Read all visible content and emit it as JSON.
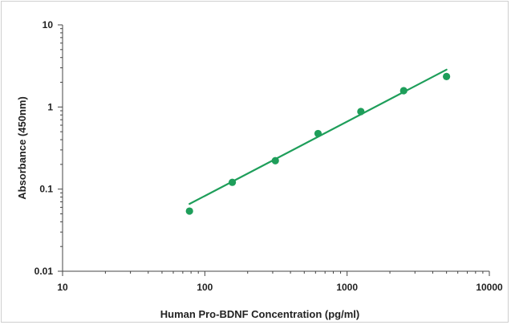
{
  "chart_data": {
    "type": "scatter",
    "title": "",
    "xlabel": "Human Pro-BDNF  Concentration (pg/ml)",
    "ylabel": "Absorbance (450nm)",
    "x_scale": "log",
    "y_scale": "log",
    "xlim": [
      10,
      10000
    ],
    "ylim": [
      0.01,
      10
    ],
    "x_ticks": [
      10,
      100,
      1000,
      10000
    ],
    "x_tick_labels": [
      "10",
      "100",
      "1000",
      "10000"
    ],
    "y_ticks": [
      0.01,
      0.1,
      1,
      10
    ],
    "y_tick_labels": [
      "0.01",
      "0.1",
      "1",
      "10"
    ],
    "grid": false,
    "legend": "none",
    "series": [
      {
        "x": [
          78,
          156,
          313,
          625,
          1250,
          2500,
          5000
        ],
        "y": [
          0.054,
          0.121,
          0.222,
          0.475,
          0.88,
          1.58,
          2.35
        ],
        "marker_color": "#1e9e5a"
      }
    ],
    "fit_line": {
      "type": "power",
      "x": [
        78,
        5000
      ],
      "y": [
        0.066,
        2.85
      ],
      "color": "#1e9e5a"
    }
  }
}
